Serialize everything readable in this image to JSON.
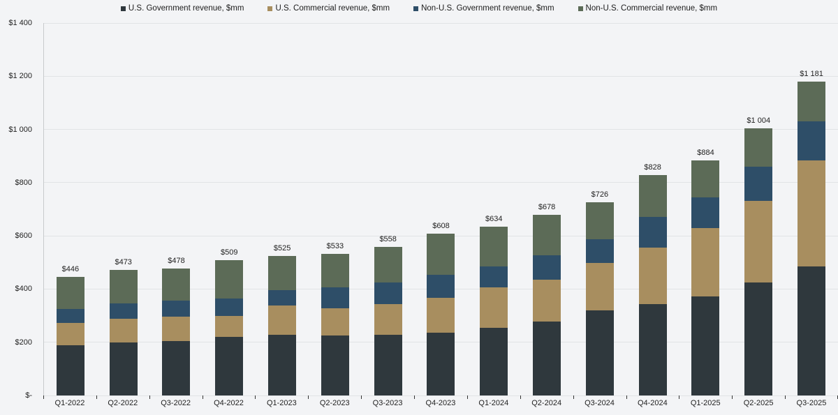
{
  "chart_data": {
    "type": "bar",
    "stacked": true,
    "legend_position": "top",
    "grid": true,
    "categories": [
      "Q1-2022",
      "Q2-2022",
      "Q3-2022",
      "Q4-2022",
      "Q1-2023",
      "Q2-2023",
      "Q3-2023",
      "Q4-2023",
      "Q1-2024",
      "Q2-2024",
      "Q3-2024",
      "Q4-2024",
      "Q1-2025",
      "Q2-2025",
      "Q3-2025"
    ],
    "series": [
      {
        "name": "U.S. Government revenue, $mm",
        "color": "#2f383d",
        "values": [
          189,
          199,
          204,
          220,
          228,
          225,
          227,
          236,
          254,
          278,
          320,
          343,
          373,
          426,
          486
        ]
      },
      {
        "name": "U.S. Commercial revenue, $mm",
        "color": "#a88e5f",
        "values": [
          83,
          89,
          92,
          78,
          111,
          103,
          117,
          132,
          153,
          157,
          179,
          214,
          256,
          306,
          397
        ]
      },
      {
        "name": "Non-U.S. Government revenue, $mm",
        "color": "#2e4e68",
        "values": [
          54,
          58,
          61,
          67,
          57,
          79,
          80,
          85,
          79,
          92,
          88,
          113,
          115,
          127,
          148
        ]
      },
      {
        "name": "Non-U.S. Commercial revenue, $mm",
        "color": "#5c6b57",
        "values": [
          120,
          127,
          121,
          144,
          129,
          126,
          134,
          155,
          148,
          151,
          139,
          158,
          140,
          145,
          150
        ]
      }
    ],
    "totals": [
      446,
      473,
      478,
      509,
      525,
      533,
      558,
      608,
      634,
      678,
      726,
      828,
      884,
      1004,
      1181
    ],
    "total_labels": [
      "$446",
      "$473",
      "$478",
      "$509",
      "$525",
      "$533",
      "$558",
      "$608",
      "$634",
      "$678",
      "$726",
      "$828",
      "$884",
      "$1 004",
      "$1 181"
    ],
    "y_axis": {
      "min": 0,
      "max": 1400,
      "step": 200,
      "tick_labels": [
        "$-",
        "$200",
        "$400",
        "$600",
        "$800",
        "$1 000",
        "$1 200",
        "$1 400"
      ]
    }
  },
  "colors": {
    "background": "#f3f4f6",
    "gridline": "#e1e3e6",
    "axis_line": "#c7cacc",
    "tick_mark": "#333333",
    "label_text": "#222222"
  }
}
